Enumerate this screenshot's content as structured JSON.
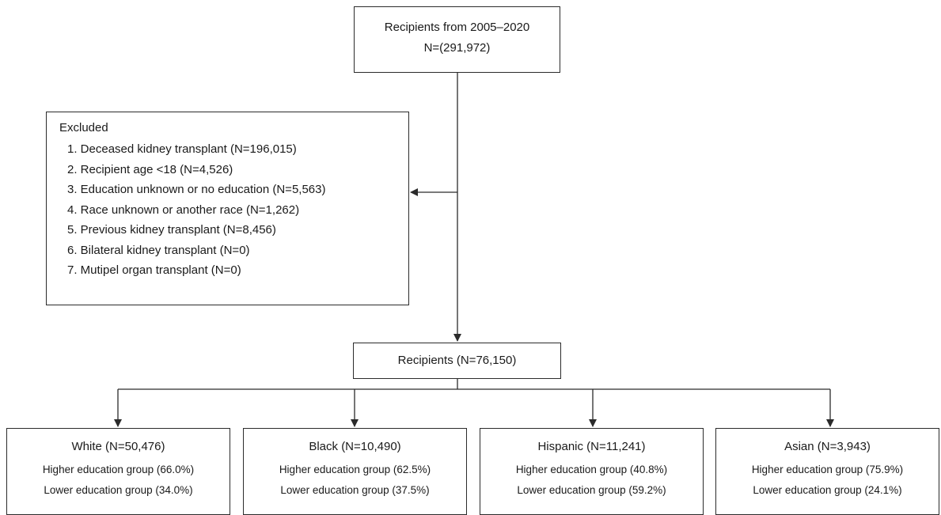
{
  "top": {
    "line1": "Recipients from 2005–2020",
    "line2": "N=(291,972)"
  },
  "excluded": {
    "title": "Excluded",
    "items": [
      "1. Deceased kidney transplant (N=196,015)",
      "2. Recipient age <18 (N=4,526)",
      "3. Education unknown or no education (N=5,563)",
      "4. Race unknown or another race (N=1,262)",
      "5. Previous kidney transplant (N=8,456)",
      "6. Bilateral kidney transplant (N=0)",
      "7. Mutipel organ transplant (N=0)"
    ]
  },
  "middle": {
    "label": "Recipients (N=76,150)"
  },
  "groups": [
    {
      "title": "White (N=50,476)",
      "higher": "Higher education group (66.0%)",
      "lower": "Lower education group (34.0%)"
    },
    {
      "title": "Black (N=10,490)",
      "higher": "Higher education group (62.5%)",
      "lower": "Lower education group (37.5%)"
    },
    {
      "title": "Hispanic (N=11,241)",
      "higher": "Higher education group (40.8%)",
      "lower": "Lower education group (59.2%)"
    },
    {
      "title": "Asian (N=3,943)",
      "higher": "Higher education group (75.9%)",
      "lower": "Lower education group (24.1%)"
    }
  ],
  "colors": {
    "line": "#2b2b2b",
    "text": "#1a1a1a",
    "background": "#ffffff"
  }
}
